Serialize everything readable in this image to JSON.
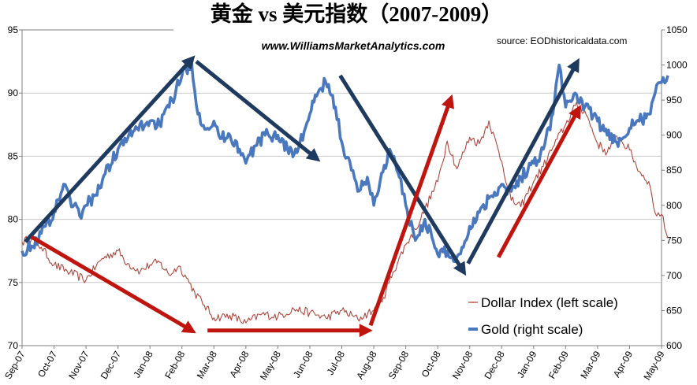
{
  "chart_data": {
    "type": "line",
    "title": "黄金 vs 美元指数（2007-2009）",
    "subtitle": "www.WilliamsMarketAnalytics.com",
    "source": "source: EODhistoricaldata.com",
    "x_labels": [
      "Sep-07",
      "Oct-07",
      "Nov-07",
      "Dec-07",
      "Jan-08",
      "Feb-08",
      "Mar-08",
      "Apr-08",
      "May-08",
      "Jun-08",
      "Jul-08",
      "Aug-08",
      "Sep-08",
      "Oct-08",
      "Nov-08",
      "Dec-08",
      "Jan-09",
      "Feb-09",
      "Mar-09",
      "Apr-09",
      "May-09"
    ],
    "y_left": {
      "ticks": [
        "70",
        "75",
        "80",
        "85",
        "90",
        "95"
      ],
      "lim": [
        70,
        95
      ]
    },
    "y_right": {
      "ticks": [
        "600",
        "650",
        "700",
        "750",
        "800",
        "850",
        "900",
        "950",
        "1000",
        "1050"
      ],
      "lim": [
        600,
        1050
      ]
    },
    "series": [
      {
        "name": "Dollar Index (left scale)",
        "axis": "left",
        "color": "#b0463c",
        "x": [
          0,
          0.3,
          0.6,
          1.0,
          1.5,
          2.0,
          2.5,
          3.0,
          3.3,
          3.7,
          4.0,
          4.3,
          4.6,
          4.9,
          5.1,
          5.4,
          5.7,
          6.0,
          6.5,
          7.0,
          7.5,
          8.0,
          8.5,
          9.0,
          9.5,
          10.0,
          10.5,
          11.0,
          11.3,
          11.6,
          12.0,
          12.3,
          12.6,
          13.0,
          13.3,
          13.6,
          14.0,
          14.3,
          14.6,
          15.0,
          15.3,
          15.6,
          16.0,
          16.3,
          16.6,
          17.0,
          17.3,
          17.6,
          18.0,
          18.3,
          18.6,
          19.0,
          19.3,
          19.6,
          19.8,
          20.0,
          20.2
        ],
        "values": [
          78.2,
          78.5,
          77.8,
          76.4,
          75.8,
          75.2,
          76.9,
          77.5,
          76.5,
          75.9,
          76.4,
          76.6,
          75.6,
          76.3,
          75.6,
          74.2,
          73.2,
          72.2,
          72.4,
          71.8,
          72.5,
          72.3,
          72.9,
          72.6,
          72.2,
          72.8,
          72.1,
          72.8,
          73.8,
          75.8,
          78.0,
          79.2,
          80.8,
          83.0,
          86.2,
          84.0,
          86.5,
          86.0,
          87.8,
          84.6,
          81.5,
          81.0,
          83.0,
          84.2,
          85.7,
          87.5,
          89.0,
          88.6,
          86.0,
          85.3,
          86.6,
          85.5,
          83.8,
          83.0,
          80.5,
          80.4,
          78.5
        ]
      },
      {
        "name": "Gold (right scale)",
        "axis": "right",
        "color": "#4a78bf",
        "x": [
          0,
          0.3,
          0.6,
          1.0,
          1.3,
          1.5,
          1.8,
          2.0,
          2.3,
          2.6,
          3.0,
          3.3,
          3.6,
          4.0,
          4.3,
          4.6,
          5.0,
          5.3,
          5.5,
          5.8,
          6.0,
          6.2,
          6.5,
          6.8,
          7.0,
          7.3,
          7.6,
          8.0,
          8.3,
          8.6,
          9.0,
          9.3,
          9.5,
          9.8,
          10.0,
          10.3,
          10.5,
          10.8,
          11.0,
          11.2,
          11.5,
          11.8,
          12.0,
          12.3,
          12.6,
          13.0,
          13.3,
          13.5,
          13.8,
          14.0,
          14.3,
          14.6,
          15.0,
          15.3,
          15.6,
          16.0,
          16.3,
          16.6,
          16.8,
          17.0,
          17.3,
          17.6,
          18.0,
          18.3,
          18.6,
          19.0,
          19.3,
          19.6,
          19.8,
          20.0,
          20.2
        ],
        "values": [
          735,
          742,
          760,
          790,
          830,
          810,
          785,
          800,
          815,
          845,
          880,
          895,
          910,
          920,
          915,
          940,
          985,
          1005,
          930,
          910,
          920,
          895,
          900,
          880,
          860,
          885,
          900,
          900,
          880,
          875,
          930,
          965,
          975,
          940,
          890,
          850,
          820,
          840,
          800,
          835,
          880,
          840,
          800,
          750,
          780,
          730,
          735,
          720,
          740,
          770,
          790,
          810,
          830,
          820,
          840,
          860,
          880,
          930,
          1000,
          940,
          960,
          940,
          920,
          900,
          890,
          910,
          920,
          930,
          960,
          975,
          985
        ]
      }
    ],
    "arrows": [
      {
        "name": "gold-uptrend-arrow-1",
        "color": "#1f3a5f",
        "axis": "right",
        "from": [
          0.1,
          748
        ],
        "to": [
          5.3,
          1008
        ]
      },
      {
        "name": "gold-downtrend-arrow-1",
        "color": "#1f3a5f",
        "axis": "right",
        "from": [
          5.45,
          1005
        ],
        "to": [
          9.2,
          867
        ]
      },
      {
        "name": "gold-downtrend-arrow-2",
        "color": "#1f3a5f",
        "axis": "right",
        "from": [
          9.95,
          985
        ],
        "to": [
          13.8,
          706
        ]
      },
      {
        "name": "gold-uptrend-arrow-2",
        "color": "#1f3a5f",
        "axis": "right",
        "from": [
          13.95,
          717
        ],
        "to": [
          17.35,
          1003
        ]
      },
      {
        "name": "dollar-downtrend-arrow",
        "color": "#c0140f",
        "axis": "left",
        "from": [
          0.3,
          78.6
        ],
        "to": [
          5.3,
          71.2
        ]
      },
      {
        "name": "dollar-flat-arrow",
        "color": "#c0140f",
        "axis": "left",
        "from": [
          5.8,
          71.2
        ],
        "to": [
          10.8,
          71.2
        ]
      },
      {
        "name": "dollar-uptrend-arrow-1",
        "color": "#c0140f",
        "axis": "left",
        "from": [
          10.9,
          71.6
        ],
        "to": [
          13.4,
          89.5
        ]
      },
      {
        "name": "dollar-uptrend-arrow-2",
        "color": "#c0140f",
        "axis": "left",
        "from": [
          14.9,
          77.0
        ],
        "to": [
          17.4,
          88.7
        ]
      }
    ],
    "legend": [
      {
        "label": "Dollar Index (left scale)",
        "color": "#b0463c"
      },
      {
        "label": "Gold (right scale)",
        "color": "#4a78bf"
      }
    ]
  }
}
